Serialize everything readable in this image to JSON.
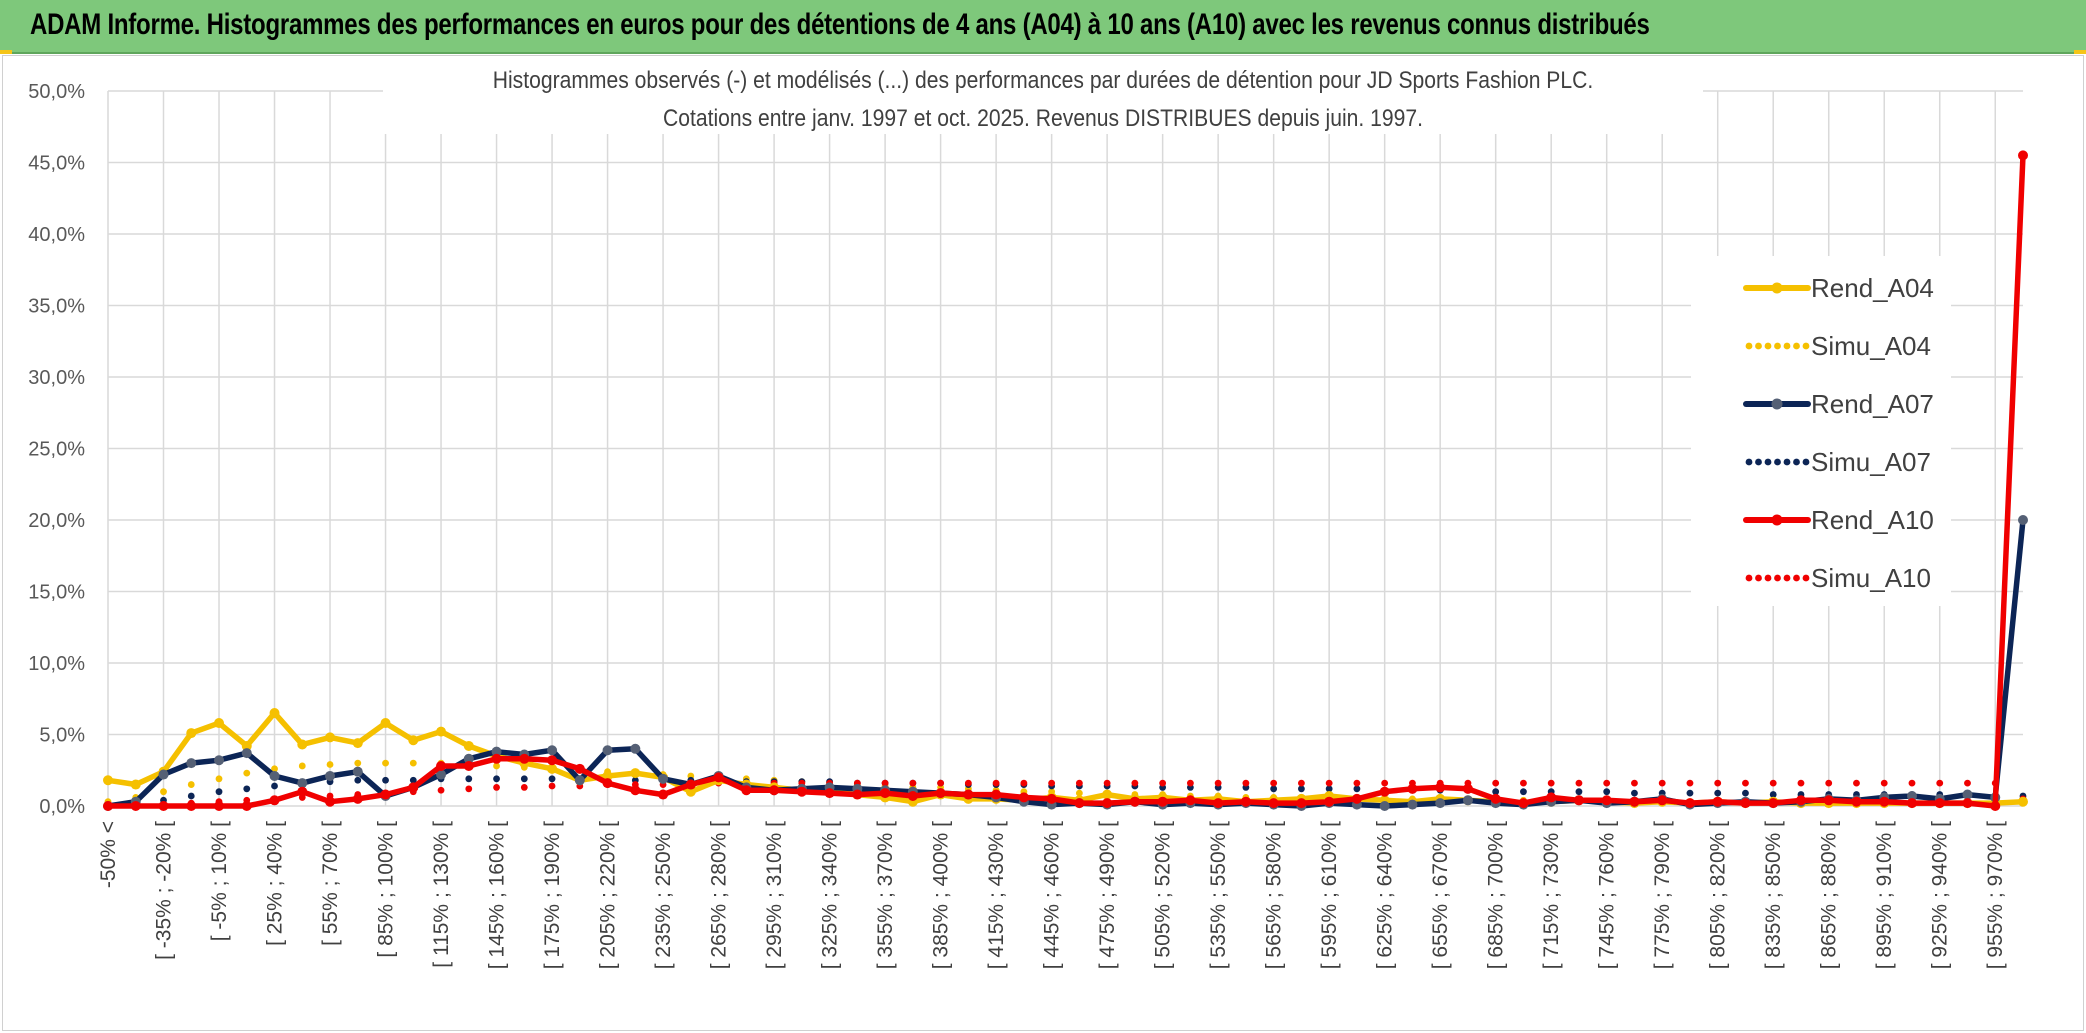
{
  "header": {
    "title": "ADAM Informe. Histogrammes des performances en euros pour des détentions de 4 ans (A04) à 10 ans (A10) avec les revenus connus distribués"
  },
  "colors": {
    "header_bg": "#7ec87b",
    "yellow": "#f5c000",
    "navy": "#0c2556",
    "navy_marker": "#556075",
    "red": "#f00000",
    "grid": "#d9d9d9"
  },
  "chart_data": {
    "type": "line",
    "title": "Histogrammes observés (-) et modélisés (...) des performances par durées de détention pour JD Sports Fashion PLC.",
    "subtitle": "Cotations entre janv. 1997 et oct. 2025. Revenus DISTRIBUES depuis juin. 1997.",
    "xlabel": "",
    "ylabel": "",
    "ylim": [
      0,
      50
    ],
    "yticks": [
      "0,0%",
      "5,0%",
      "10,0%",
      "15,0%",
      "20,0%",
      "25,0%",
      "30,0%",
      "35,0%",
      "40,0%",
      "45,0%",
      "50,0%"
    ],
    "grid": true,
    "legend_position": "right",
    "x_labels": [
      "-50% <",
      "[ -35% ; -20% [",
      "[ -5% ; 10% [",
      "[ 25% ; 40% [",
      "[ 55% ; 70% [",
      "[ 85% ; 100% [",
      "[ 115% ; 130% [",
      "[ 145% ; 160% [",
      "[ 175% ; 190% [",
      "[ 205% ; 220% [",
      "[ 235% ; 250% [",
      "[ 265% ; 280% [",
      "[ 295% ; 310% [",
      "[ 325% ; 340% [",
      "[ 355% ; 370% [",
      "[ 385% ; 400% [",
      "[ 415% ; 430% [",
      "[ 445% ; 460% [",
      "[ 475% ; 490% [",
      "[ 505% ; 520% [",
      "[ 535% ; 550% [",
      "[ 565% ; 580% [",
      "[ 595% ; 610% [",
      "[ 625% ; 640% [",
      "[ 655% ; 670% [",
      "[ 685% ; 700% [",
      "[ 715% ; 730% [",
      "[ 745% ; 760% [",
      "[ 775% ; 790% [",
      "[ 805% ; 820% [",
      "[ 835% ; 850% [",
      "[ 865% ; 880% [",
      "[ 895% ; 910% [",
      "[ 925% ; 940% [",
      "[ 955% ; 970% ["
    ],
    "series": [
      {
        "name": "Rend_A04",
        "style": "solid",
        "color": "#f5c000",
        "values": [
          1.8,
          1.5,
          2.4,
          5.1,
          5.8,
          4.2,
          6.5,
          4.3,
          4.8,
          4.4,
          5.8,
          4.6,
          5.2,
          4.2,
          3.5,
          3.0,
          2.6,
          1.8,
          2.1,
          2.3,
          2.0,
          1.0,
          1.8,
          1.5,
          1.3,
          1.1,
          1.0,
          0.8,
          0.6,
          0.3,
          0.8,
          0.5,
          0.5,
          0.4,
          0.6,
          0.4,
          0.8,
          0.5,
          0.6,
          0.4,
          0.5,
          0.3,
          0.4,
          0.5,
          0.7,
          0.5,
          0.4,
          0.3,
          0.5,
          0.4,
          0.3,
          0.2,
          0.3,
          0.4,
          0.3,
          0.2,
          0.3,
          0.2,
          0.3,
          0.2,
          0.3,
          0.2,
          0.2,
          0.2,
          0.2,
          0.2,
          0.2,
          0.2,
          0.2,
          0.3
        ]
      },
      {
        "name": "Simu_A04",
        "style": "dotted",
        "color": "#f5c000",
        "values": [
          0.3,
          0.6,
          1.0,
          1.5,
          1.9,
          2.3,
          2.6,
          2.8,
          2.9,
          3.0,
          3.0,
          3.0,
          3.0,
          2.9,
          2.8,
          2.7,
          2.6,
          2.5,
          2.4,
          2.3,
          2.2,
          2.1,
          2.0,
          1.9,
          1.8,
          1.7,
          1.6,
          1.5,
          1.4,
          1.3,
          1.3,
          1.2,
          1.1,
          1.0,
          1.0,
          0.9,
          0.9,
          0.8,
          0.8,
          0.7,
          0.7,
          0.6,
          0.6,
          0.6,
          0.5,
          0.5,
          0.5,
          0.5,
          0.4,
          0.4,
          0.4,
          0.4,
          0.4,
          0.3,
          0.3,
          0.3,
          0.3,
          0.3,
          0.3,
          0.3,
          0.3,
          0.3,
          0.3,
          0.3,
          0.3,
          0.3,
          0.3,
          0.3,
          0.3,
          0.5
        ]
      },
      {
        "name": "Rend_A07",
        "style": "solid",
        "color": "#0c2556",
        "values": [
          0.0,
          0.3,
          2.2,
          3.0,
          3.2,
          3.7,
          2.1,
          1.6,
          2.1,
          2.4,
          0.7,
          1.3,
          2.2,
          3.3,
          3.8,
          3.6,
          3.9,
          1.8,
          3.9,
          4.0,
          1.9,
          1.5,
          2.1,
          1.3,
          1.1,
          1.2,
          1.3,
          1.2,
          1.1,
          1.0,
          0.9,
          0.8,
          0.6,
          0.3,
          0.1,
          0.2,
          0.1,
          0.3,
          0.1,
          0.2,
          0.1,
          0.2,
          0.1,
          0.0,
          0.2,
          0.1,
          0.0,
          0.1,
          0.2,
          0.4,
          0.2,
          0.1,
          0.3,
          0.4,
          0.2,
          0.3,
          0.5,
          0.1,
          0.2,
          0.3,
          0.2,
          0.3,
          0.5,
          0.4,
          0.6,
          0.7,
          0.5,
          0.8,
          0.6,
          20.0
        ]
      },
      {
        "name": "Simu_A07",
        "style": "dotted",
        "color": "#0c2556",
        "values": [
          0.0,
          0.2,
          0.4,
          0.7,
          1.0,
          1.2,
          1.4,
          1.6,
          1.7,
          1.8,
          1.8,
          1.8,
          1.9,
          1.9,
          1.9,
          1.9,
          1.9,
          1.9,
          1.8,
          1.8,
          1.8,
          1.8,
          1.8,
          1.7,
          1.7,
          1.7,
          1.7,
          1.6,
          1.6,
          1.6,
          1.6,
          1.5,
          1.5,
          1.5,
          1.4,
          1.4,
          1.4,
          1.4,
          1.3,
          1.3,
          1.3,
          1.3,
          1.2,
          1.2,
          1.2,
          1.2,
          1.1,
          1.1,
          1.1,
          1.1,
          1.0,
          1.0,
          1.0,
          1.0,
          1.0,
          0.9,
          0.9,
          0.9,
          0.9,
          0.9,
          0.8,
          0.8,
          0.8,
          0.8,
          0.8,
          0.8,
          0.8,
          0.7,
          0.7,
          0.7
        ]
      },
      {
        "name": "Rend_A10",
        "style": "solid",
        "color": "#f00000",
        "values": [
          0.0,
          0.0,
          0.0,
          0.0,
          0.0,
          0.0,
          0.4,
          1.0,
          0.3,
          0.5,
          0.8,
          1.3,
          2.8,
          2.8,
          3.3,
          3.3,
          3.2,
          2.6,
          1.6,
          1.1,
          0.8,
          1.5,
          2.0,
          1.1,
          1.1,
          1.0,
          0.9,
          0.8,
          0.9,
          0.7,
          0.9,
          0.8,
          0.8,
          0.6,
          0.5,
          0.2,
          0.2,
          0.3,
          0.3,
          0.4,
          0.2,
          0.3,
          0.2,
          0.2,
          0.3,
          0.5,
          1.0,
          1.2,
          1.3,
          1.2,
          0.5,
          0.2,
          0.6,
          0.4,
          0.4,
          0.3,
          0.4,
          0.2,
          0.3,
          0.2,
          0.2,
          0.4,
          0.4,
          0.3,
          0.3,
          0.2,
          0.2,
          0.2,
          0.0,
          45.5
        ]
      },
      {
        "name": "Simu_A10",
        "style": "dotted",
        "color": "#f00000",
        "values": [
          0.0,
          0.0,
          0.1,
          0.2,
          0.3,
          0.4,
          0.5,
          0.6,
          0.7,
          0.8,
          0.9,
          1.0,
          1.1,
          1.2,
          1.3,
          1.3,
          1.4,
          1.4,
          1.5,
          1.5,
          1.5,
          1.5,
          1.6,
          1.6,
          1.6,
          1.6,
          1.6,
          1.6,
          1.6,
          1.6,
          1.6,
          1.6,
          1.6,
          1.6,
          1.6,
          1.6,
          1.6,
          1.6,
          1.6,
          1.6,
          1.6,
          1.6,
          1.6,
          1.6,
          1.6,
          1.6,
          1.6,
          1.6,
          1.6,
          1.6,
          1.6,
          1.6,
          1.6,
          1.6,
          1.6,
          1.6,
          1.6,
          1.6,
          1.6,
          1.6,
          1.6,
          1.6,
          1.6,
          1.6,
          1.6,
          1.6,
          1.6,
          1.6,
          1.6,
          0.5
        ]
      }
    ]
  }
}
